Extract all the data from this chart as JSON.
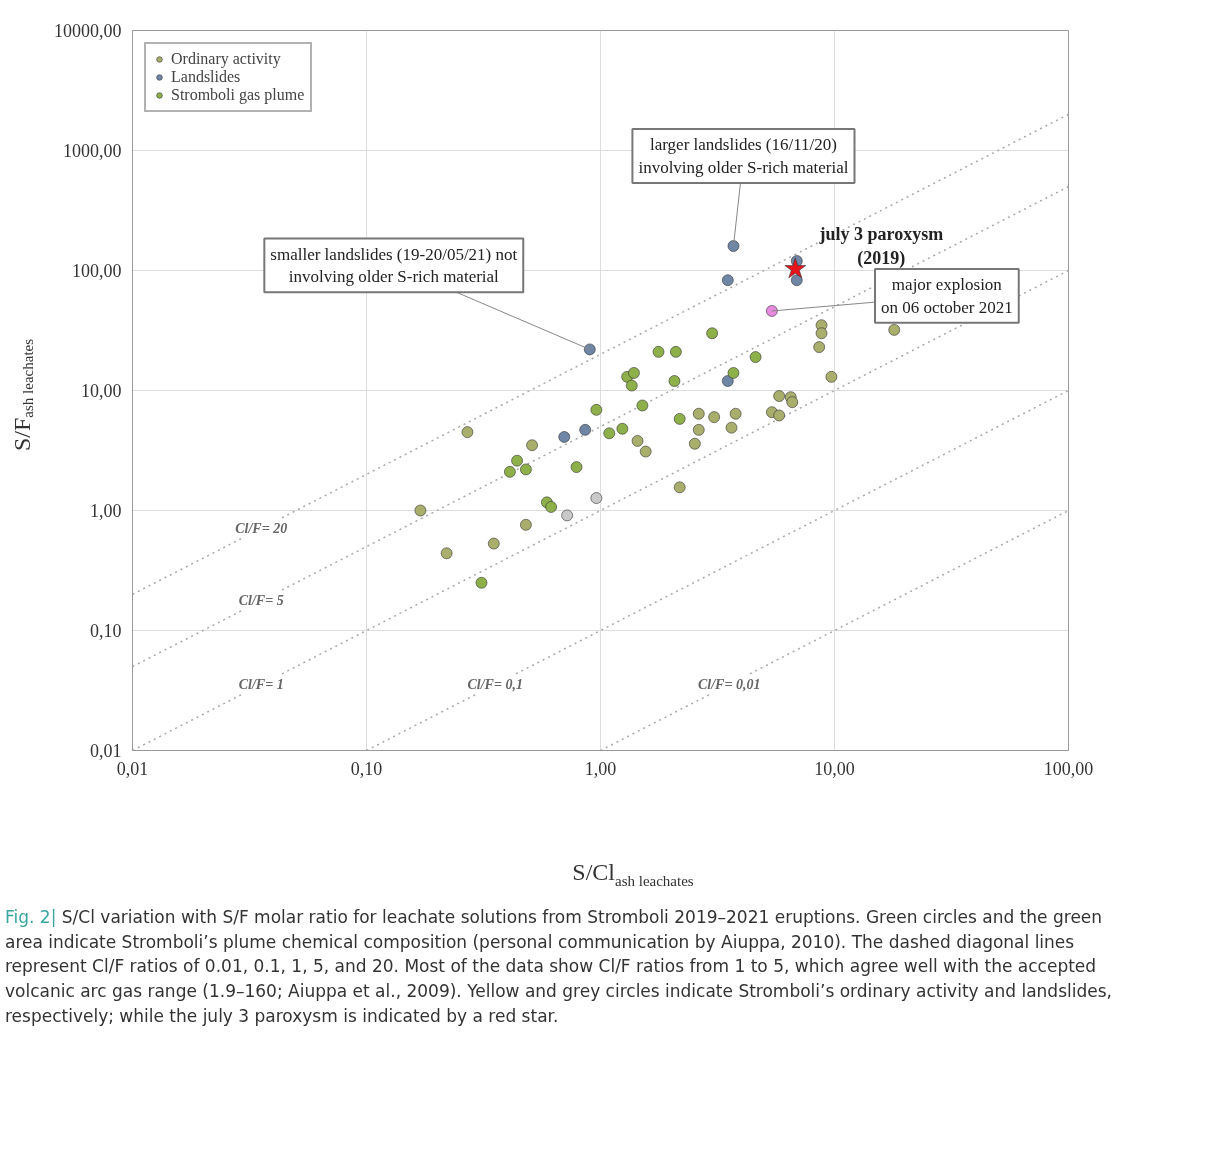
{
  "chart_data": {
    "type": "scatter",
    "xlabel": "S/Cl$_{ash leachates}$",
    "ylabel": "S/F$_{ash leachates}$",
    "log": "xy",
    "grid": true,
    "legend": "top left",
    "marker": "circle",
    "xlim": [
      0.01,
      100
    ],
    "ylim": [
      0.01,
      10000
    ],
    "xticks": [
      {
        "value": 0.01,
        "label": "0,01"
      },
      {
        "value": 0.1,
        "label": "0,10"
      },
      {
        "value": 1,
        "label": "1,00"
      },
      {
        "value": 10,
        "label": "10,00"
      },
      {
        "value": 100,
        "label": "100,00"
      }
    ],
    "yticks": [
      {
        "value": 0.01,
        "label": "0,01"
      },
      {
        "value": 0.1,
        "label": "0,10"
      },
      {
        "value": 1,
        "label": "1,00"
      },
      {
        "value": 10,
        "label": "10,00"
      },
      {
        "value": 100,
        "label": "100,00"
      },
      {
        "value": 1000,
        "label": "1000,00"
      },
      {
        "value": 10000,
        "label": "10000,00"
      }
    ],
    "series": [
      {
        "name": "Cl/F= 20",
        "type": "line",
        "marker": "none",
        "line_style": "dotted",
        "color": "#a8a8a8",
        "x": [
          0.01,
          100
        ],
        "values": [
          0.2,
          2000
        ]
      },
      {
        "name": "Cl/F= 5",
        "type": "line",
        "marker": "none",
        "line_style": "dotted",
        "color": "#a8a8a8",
        "x": [
          0.01,
          100
        ],
        "values": [
          0.05,
          500
        ]
      },
      {
        "name": "Cl/F= 1",
        "type": "line",
        "marker": "none",
        "line_style": "dotted",
        "color": "#a8a8a8",
        "x": [
          0.01,
          100
        ],
        "values": [
          0.01,
          100
        ]
      },
      {
        "name": "Cl/F= 0,1",
        "type": "line",
        "marker": "none",
        "line_style": "dotted",
        "color": "#a8a8a8",
        "x": [
          0.1,
          100
        ],
        "values": [
          0.01,
          10
        ]
      },
      {
        "name": "Cl/F= 0,01",
        "type": "line",
        "marker": "none",
        "line_style": "dotted",
        "color": "#a8a8a8",
        "x": [
          1,
          100
        ],
        "values": [
          0.01,
          1
        ]
      },
      {
        "name": "Ordinary activity",
        "color": "#a9ae6c",
        "x": [
          0.27,
          0.51,
          0.17,
          0.48,
          0.35,
          0.22,
          1.44,
          1.56,
          2.63,
          3.06,
          2.63,
          2.53,
          3.78,
          3.63,
          2.18,
          8.8,
          8.8,
          8.6,
          18,
          9.7,
          5.8,
          6.5,
          6.6,
          5.4,
          5.8
        ],
        "values": [
          4.5,
          3.5,
          1.0,
          0.76,
          0.53,
          0.44,
          3.8,
          3.1,
          6.4,
          6.0,
          4.7,
          3.6,
          6.4,
          4.9,
          1.56,
          35,
          30,
          23,
          32,
          13,
          9.0,
          8.8,
          8.0,
          6.6,
          6.2
        ]
      },
      {
        "name": "Landslides",
        "color": "#6f86a6",
        "x": [
          0.9,
          0.7,
          0.86,
          3.7,
          3.5,
          6.9,
          6.9,
          3.5
        ],
        "values": [
          22,
          4.1,
          4.7,
          160,
          83,
          83,
          120,
          12
        ]
      },
      {
        "color": "#c9c9c9",
        "x": [
          0.96,
          0.72
        ],
        "values": [
          1.27,
          0.91
        ]
      },
      {
        "name": "Stromboli gas plume",
        "color": "#8db04a",
        "x": [
          3.0,
          1.77,
          2.1,
          1.3,
          1.39,
          1.36,
          2.07,
          1.51,
          3.7,
          2.18,
          1.24,
          1.09,
          0.44,
          0.41,
          0.48,
          0.79,
          0.59,
          0.615,
          0.31,
          4.6,
          0.96
        ],
        "values": [
          30,
          21,
          21,
          13,
          14,
          11,
          12,
          7.5,
          14,
          5.8,
          4.8,
          4.4,
          2.6,
          2.1,
          2.2,
          2.3,
          1.17,
          1.07,
          0.25,
          19,
          6.9
        ]
      },
      {
        "color": "#e889e0",
        "x": [
          5.4
        ],
        "values": [
          46
        ]
      },
      {
        "color": "#e8141c",
        "marker": "star",
        "x": [
          6.8
        ],
        "values": [
          103
        ]
      }
    ],
    "annotations": [
      {
        "text": "larger landslides (16/11/20)\ninvolving older S-rich material",
        "x": 3.7,
        "y": 160
      },
      {
        "text": "smaller landslides (19-20/05/21) not\ninvolving older S-rich material",
        "x": 0.9,
        "y": 22
      },
      {
        "text": "july 3 paroxysm\n(2019)",
        "x": 6.8,
        "y": 103
      },
      {
        "text": "major explosion\non 06 october 2021",
        "x": 5.4,
        "y": 46
      },
      "Fig. 2|",
      "S/Cl variation with S/F molar ratio for leachate solutions from Stromboli 2019–2021 eruptions. Green circles and the green area indicate Stromboli’s plume chemical composition (personal communication by Aiuppa, 2010). The dashed diagonal lines represent Cl/F ratios of 0.01, 0.1, 1, 5, and 20. Most of the data show Cl/F ratios from 1 to 5, which agree well with the accepted volcanic arc gas range (1.9–160; Aiuppa et al., 2009). Yellow and grey circles indicate Stromboli’s ordinary activity and landslides, respectively; while the july 3 paroxysm is indicated by a red star."
    ]
  }
}
